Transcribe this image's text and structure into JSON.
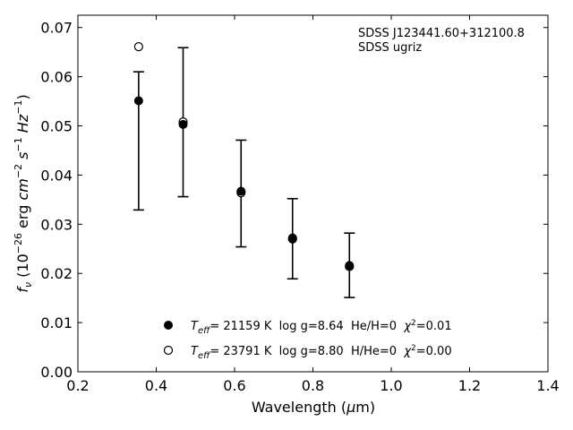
{
  "chart_data": {
    "type": "scatter",
    "xlabel": "Wavelength (μm)",
    "ylabel": "f_ν (10^-26 erg cm^-2 s^-1 Hz^-1)",
    "xlim": [
      0.2,
      1.4
    ],
    "ylim": [
      0.0,
      0.0725
    ],
    "x_ticks": [
      "0.2",
      "0.4",
      "0.6",
      "0.8",
      "1.0",
      "1.2",
      "1.4"
    ],
    "y_ticks": [
      "0.00",
      "0.01",
      "0.02",
      "0.03",
      "0.04",
      "0.05",
      "0.06",
      "0.07"
    ],
    "grid": false,
    "annotation": [
      "SDSS J123441.60+312100.8",
      "SDSS ugriz"
    ],
    "observed": {
      "x": [
        0.3551,
        0.4686,
        0.6166,
        0.748,
        0.8932
      ],
      "y": [
        0.0551,
        0.0507,
        0.0362,
        0.0271,
        0.0215
      ],
      "yerr_low": [
        0.0329,
        0.0356,
        0.0254,
        0.0189,
        0.0151
      ],
      "yerr_high": [
        0.061,
        0.0659,
        0.0471,
        0.0352,
        0.0282
      ]
    },
    "series": [
      {
        "marker": "filled-circle",
        "x": [
          0.3551,
          0.4686,
          0.6166,
          0.748,
          0.8932
        ],
        "y": [
          0.0551,
          0.0503,
          0.0367,
          0.0272,
          0.0216
        ]
      },
      {
        "marker": "open-circle",
        "x": [
          0.3551,
          0.4686,
          0.6166,
          0.748,
          0.8932
        ],
        "y": [
          0.0661,
          0.0508,
          0.0364,
          0.027,
          0.0214
        ]
      }
    ],
    "legend": {
      "placement": "lower-center",
      "entries": [
        {
          "teff": "21159 K",
          "logg": "log g=8.64",
          "comp": "He/H=0",
          "chi2": "=0.01"
        },
        {
          "teff": "23791 K",
          "logg": "log g=8.80",
          "comp": "H/He=0",
          "chi2": "=0.00"
        }
      ]
    }
  }
}
